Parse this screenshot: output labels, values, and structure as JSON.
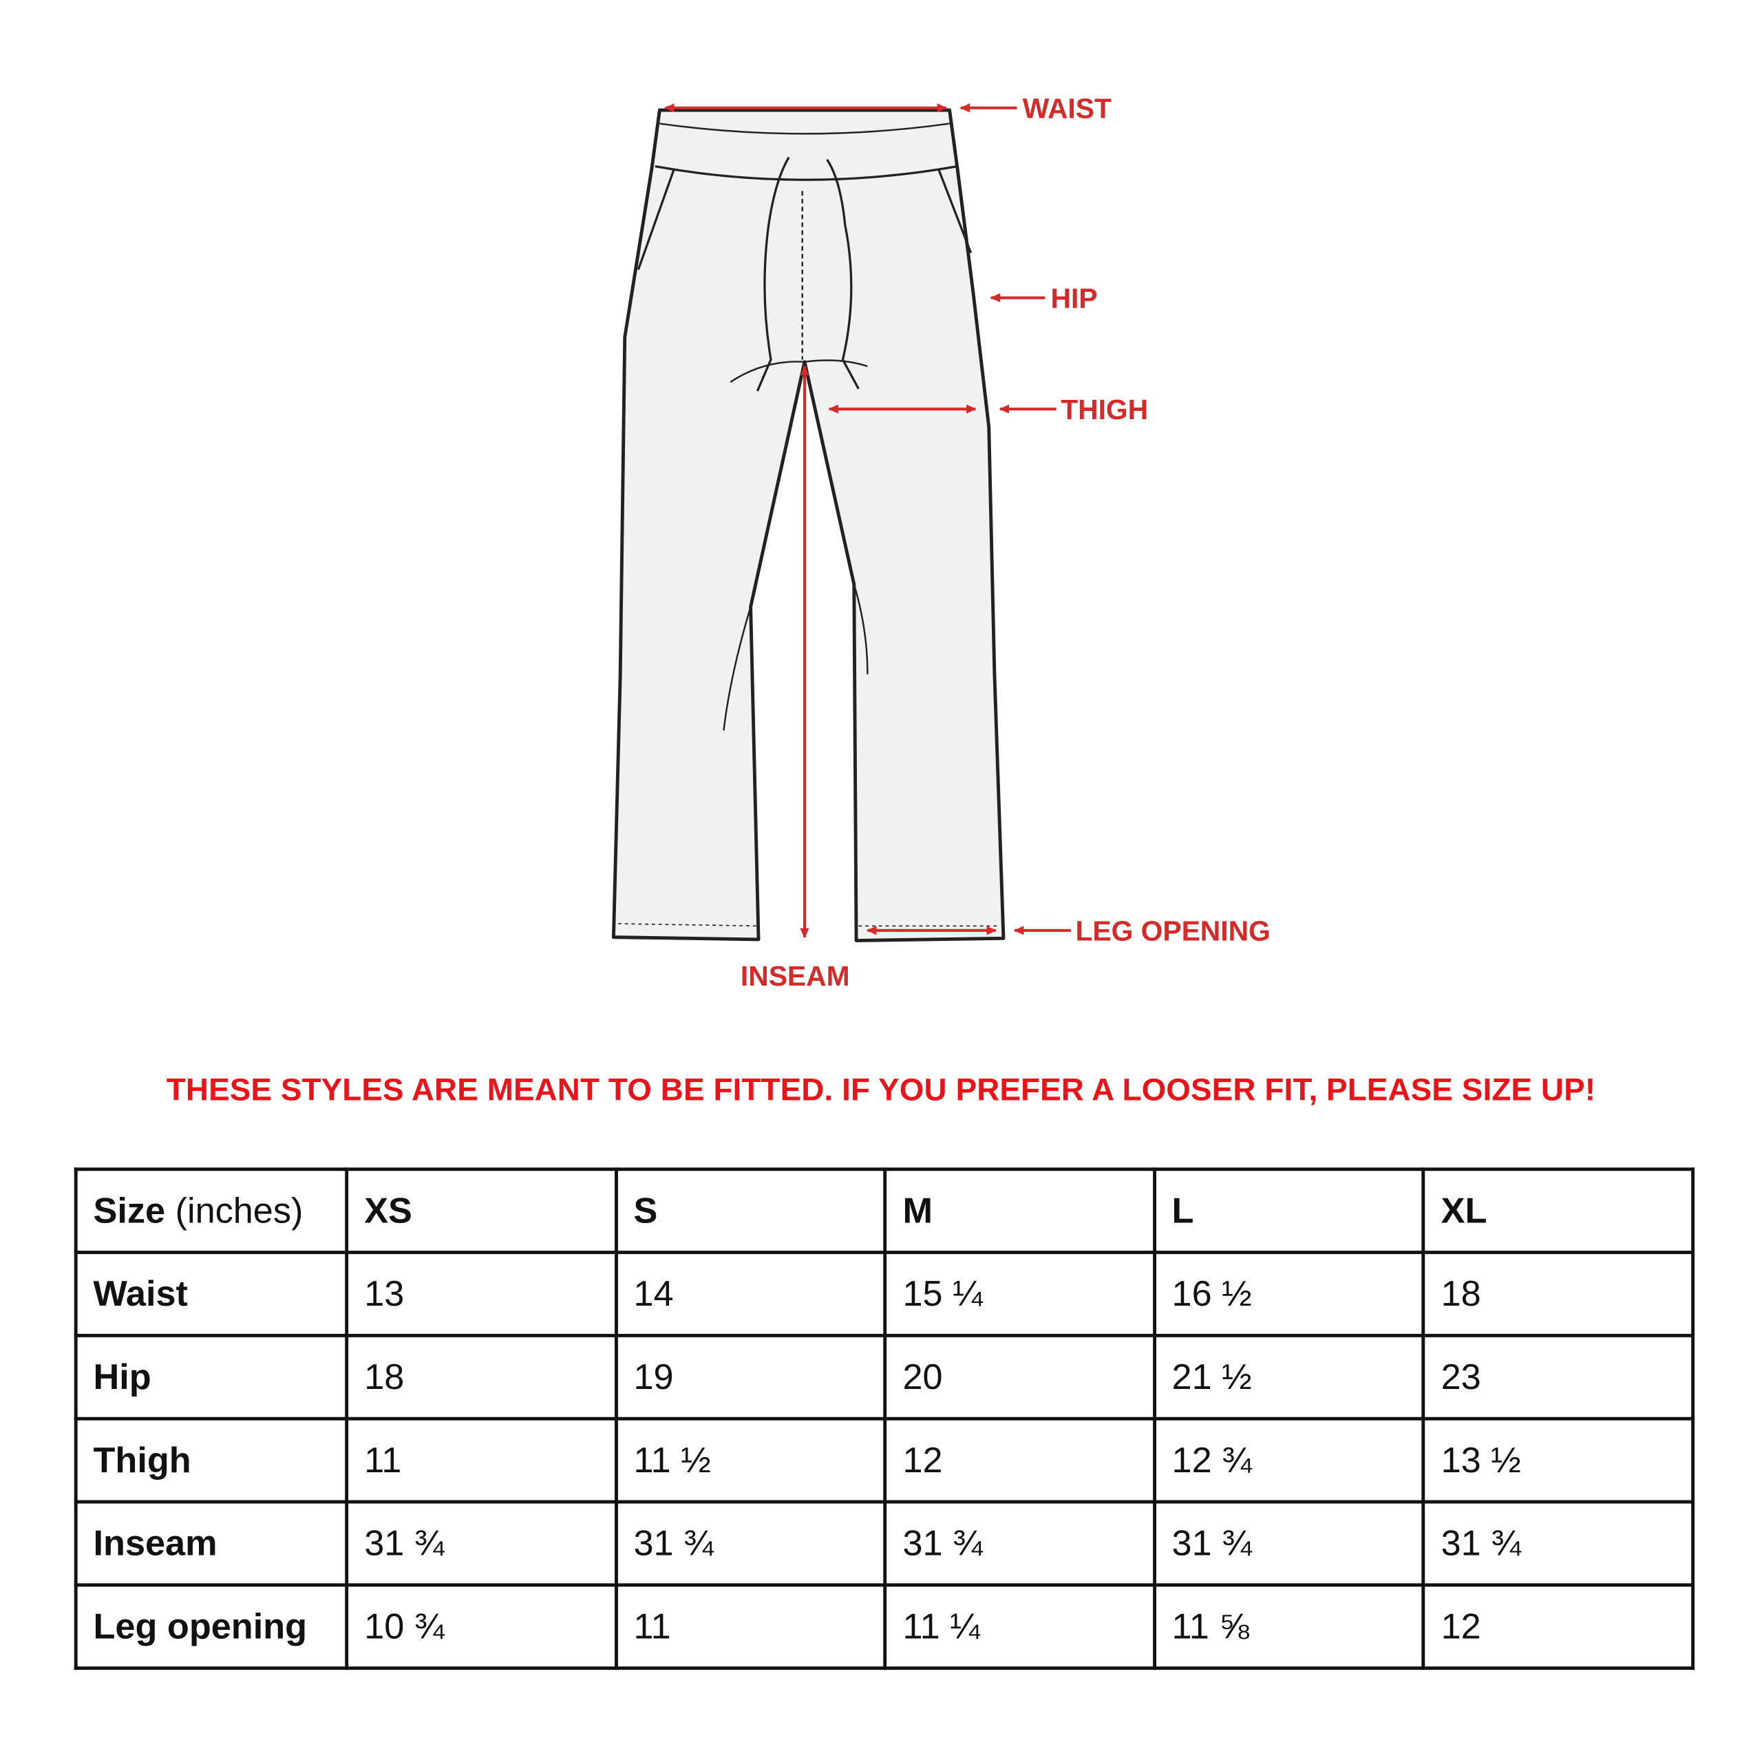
{
  "diagram": {
    "labels": {
      "waist": "WAIST",
      "hip": "HIP",
      "thigh": "THIGH",
      "leg_opening": "LEG OPENING",
      "inseam": "INSEAM"
    },
    "accent_color": "#d42a2a"
  },
  "notice": "THESE STYLES ARE MEANT TO BE FITTED. IF YOU PREFER A LOOSER FIT, PLEASE SIZE UP!",
  "table": {
    "header": {
      "label": "Size",
      "unit": "(inches)",
      "sizes": [
        "XS",
        "S",
        "M",
        "L",
        "XL"
      ]
    },
    "rows": [
      {
        "label": "Waist",
        "values": [
          "13",
          "14",
          "15 ¼",
          "16 ½",
          "18"
        ]
      },
      {
        "label": "Hip",
        "values": [
          "18",
          "19",
          "20",
          "21 ½",
          "23"
        ]
      },
      {
        "label": "Thigh",
        "values": [
          "11",
          "11 ½",
          "12",
          "12 ¾",
          "13 ½"
        ]
      },
      {
        "label": "Inseam",
        "values": [
          "31 ¾",
          "31 ¾",
          "31 ¾",
          "31 ¾",
          "31 ¾"
        ]
      },
      {
        "label": "Leg opening",
        "values": [
          "10 ¾",
          "11",
          "11 ¼",
          "11 ⅝",
          "12"
        ]
      }
    ]
  }
}
